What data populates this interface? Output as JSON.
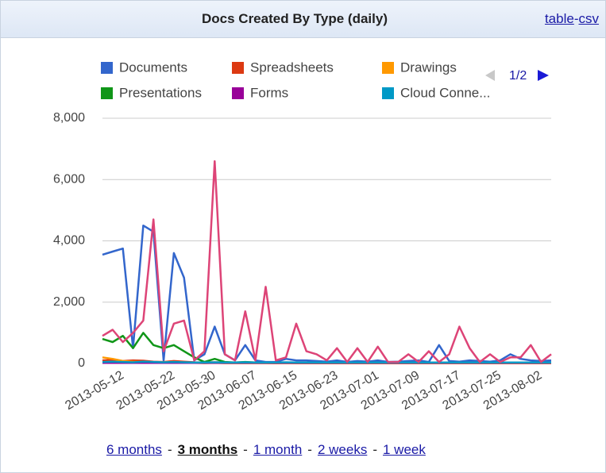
{
  "chart_data": {
    "type": "line",
    "title": "Docs Created By Type (daily)",
    "categories": [
      null,
      null,
      "2013-05-12",
      null,
      null,
      null,
      null,
      "2013-05-22",
      null,
      null,
      null,
      "2013-05-30",
      null,
      null,
      null,
      "2013-06-07",
      null,
      null,
      null,
      "2013-06-15",
      null,
      null,
      null,
      "2013-06-23",
      null,
      null,
      null,
      "2013-07-01",
      null,
      null,
      null,
      "2013-07-09",
      null,
      null,
      null,
      "2013-07-17",
      null,
      null,
      null,
      "2013-07-25",
      null,
      null,
      null,
      "2013-08-02",
      null
    ],
    "series": [
      {
        "name": "Documents",
        "color": "#3366cc",
        "values": [
          3550,
          3650,
          3750,
          500,
          4500,
          4300,
          100,
          3600,
          2800,
          100,
          300,
          1200,
          300,
          100,
          600,
          100,
          50,
          50,
          150,
          100,
          100,
          80,
          60,
          100,
          50,
          80,
          60,
          100,
          50,
          60,
          80,
          100,
          50,
          600,
          80,
          60,
          100,
          80,
          60,
          100,
          300,
          150,
          100,
          80,
          100
        ]
      },
      {
        "name": "Spreadsheets",
        "color": "#dc3912",
        "values": [
          100,
          120,
          80,
          100,
          90,
          60,
          50,
          80,
          60,
          40,
          30,
          40,
          30,
          20,
          30,
          20,
          20,
          10,
          20,
          10,
          10,
          10,
          10,
          10,
          10,
          10,
          10,
          10,
          10,
          10,
          10,
          10,
          10,
          10,
          10,
          10,
          10,
          10,
          10,
          10,
          10,
          10,
          10,
          10,
          10
        ]
      },
      {
        "name": "Drawings",
        "color": "#ff9900",
        "values": [
          200,
          150,
          80,
          60,
          50,
          40,
          40,
          50,
          30,
          20,
          10,
          20,
          10,
          10,
          10,
          10,
          10,
          10,
          10,
          10,
          10,
          10,
          10,
          10,
          10,
          10,
          10,
          10,
          10,
          10,
          10,
          10,
          10,
          10,
          10,
          10,
          10,
          10,
          10,
          10,
          10,
          10,
          10,
          10,
          10
        ]
      },
      {
        "name": "Presentations",
        "color": "#109618",
        "values": [
          800,
          700,
          900,
          500,
          1000,
          600,
          500,
          600,
          400,
          200,
          50,
          150,
          50,
          30,
          50,
          30,
          30,
          20,
          30,
          20,
          20,
          20,
          20,
          20,
          20,
          20,
          20,
          20,
          20,
          20,
          20,
          20,
          20,
          20,
          20,
          20,
          20,
          20,
          20,
          20,
          20,
          20,
          20,
          20,
          20
        ]
      },
      {
        "name": "Forms",
        "color": "#990099",
        "values": [
          20,
          20,
          20,
          20,
          20,
          20,
          20,
          20,
          20,
          20,
          20,
          20,
          20,
          20,
          20,
          20,
          20,
          20,
          20,
          20,
          20,
          20,
          20,
          20,
          20,
          20,
          20,
          20,
          20,
          20,
          20,
          20,
          20,
          20,
          20,
          20,
          20,
          20,
          20,
          20,
          20,
          20,
          20,
          20,
          20
        ]
      },
      {
        "name": "Cloud Conne...",
        "color": "#0099c6",
        "values": [
          50,
          60,
          50,
          40,
          60,
          50,
          40,
          50,
          40,
          30,
          30,
          40,
          30,
          30,
          40,
          30,
          30,
          30,
          40,
          30,
          30,
          30,
          30,
          30,
          30,
          30,
          30,
          30,
          30,
          30,
          30,
          30,
          30,
          30,
          30,
          30,
          30,
          30,
          30,
          30,
          30,
          30,
          30,
          30,
          30
        ]
      },
      {
        "color": "#dd4477",
        "values": [
          900,
          1100,
          700,
          1000,
          1400,
          4700,
          400,
          1300,
          1400,
          100,
          400,
          6600,
          300,
          100,
          1700,
          100,
          2500,
          100,
          200,
          1300,
          400,
          300,
          100,
          500,
          50,
          500,
          50,
          550,
          50,
          50,
          300,
          50,
          400,
          50,
          300,
          1200,
          500,
          50,
          300,
          50,
          200,
          200,
          600,
          50,
          300
        ]
      }
    ],
    "ylim": [
      0,
      8000
    ],
    "yticks": [
      {
        "value": 0,
        "label": "0"
      },
      {
        "value": 2000,
        "label": "2,000"
      },
      {
        "value": 4000,
        "label": "4,000"
      },
      {
        "value": 6000,
        "label": "6,000"
      },
      {
        "value": 8000,
        "label": "8,000"
      }
    ],
    "grid": true,
    "legend_page": "1/2"
  },
  "header_links": [
    "table",
    "csv"
  ],
  "link_separator": "-",
  "range_links": [
    "6 months",
    "3 months",
    "1 month",
    "2 weeks",
    "1 week"
  ]
}
